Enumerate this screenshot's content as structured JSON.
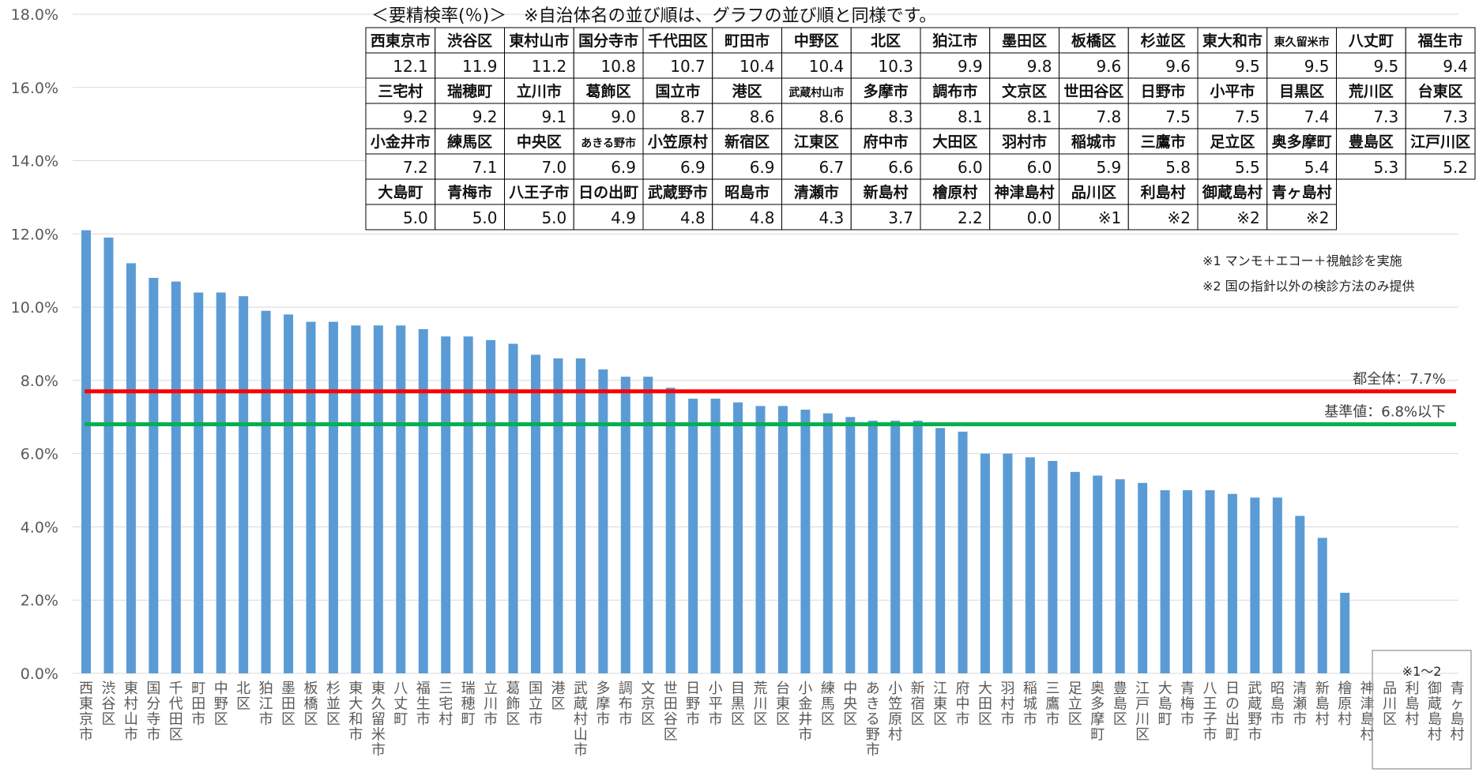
{
  "chart_data": {
    "type": "bar",
    "categories": [
      "西東京市",
      "渋谷区",
      "東村山市",
      "国分寺市",
      "千代田区",
      "町田市",
      "中野区",
      "北区",
      "狛江市",
      "墨田区",
      "板橋区",
      "杉並区",
      "東大和市",
      "東久留米市",
      "八丈町",
      "福生市",
      "三宅村",
      "瑞穂町",
      "立川市",
      "葛飾区",
      "国立市",
      "港区",
      "武蔵村山市",
      "多摩市",
      "調布市",
      "文京区",
      "世田谷区",
      "日野市",
      "小平市",
      "目黒区",
      "荒川区",
      "台東区",
      "小金井市",
      "練馬区",
      "中央区",
      "あきる野市",
      "小笠原村",
      "新宿区",
      "江東区",
      "府中市",
      "大田区",
      "羽村市",
      "稲城市",
      "三鷹市",
      "足立区",
      "奥多摩町",
      "豊島区",
      "江戸川区",
      "大島町",
      "青梅市",
      "八王子市",
      "日の出町",
      "武蔵野市",
      "昭島市",
      "清瀬市",
      "新島村",
      "檜原村",
      "神津島村",
      "品川区",
      "利島村",
      "御蔵島村",
      "青ヶ島村"
    ],
    "values": [
      12.1,
      11.9,
      11.2,
      10.8,
      10.7,
      10.4,
      10.4,
      10.3,
      9.9,
      9.8,
      9.6,
      9.6,
      9.5,
      9.5,
      9.5,
      9.4,
      9.2,
      9.2,
      9.1,
      9.0,
      8.7,
      8.6,
      8.6,
      8.3,
      8.1,
      8.1,
      7.8,
      7.5,
      7.5,
      7.4,
      7.3,
      7.3,
      7.2,
      7.1,
      7.0,
      6.9,
      6.9,
      6.9,
      6.7,
      6.6,
      6.0,
      6.0,
      5.9,
      5.8,
      5.5,
      5.4,
      5.3,
      5.2,
      5.0,
      5.0,
      5.0,
      4.9,
      4.8,
      4.8,
      4.3,
      3.7,
      2.2,
      0.0,
      null,
      null,
      null,
      null
    ],
    "ylim": [
      0,
      18
    ],
    "yticks": [
      "0.0%",
      "2.0%",
      "4.0%",
      "6.0%",
      "8.0%",
      "10.0%",
      "12.0%",
      "14.0%",
      "16.0%",
      "18.0%"
    ],
    "bar_color": "#5B9BD5",
    "reference_lines": [
      {
        "value": 7.7,
        "label": "都全体：7.7%",
        "color": "#FF0000"
      },
      {
        "value": 6.8,
        "label": "基準値：6.8%以下",
        "color": "#00B050"
      }
    ],
    "gridlines": true,
    "excluded_box_label": "※1～2"
  },
  "table": {
    "title": "＜要精検率(％)＞　※自治体名の並び順は、グラフの並び順と同様です。",
    "rows": [
      {
        "names": [
          "西東京市",
          "渋谷区",
          "東村山市",
          "国分寺市",
          "千代田区",
          "町田市",
          "中野区",
          "北区",
          "狛江市",
          "墨田区",
          "板橋区",
          "杉並区",
          "東大和市",
          "東久留米市",
          "八丈町",
          "福生市"
        ],
        "values": [
          "12.1",
          "11.9",
          "11.2",
          "10.8",
          "10.7",
          "10.4",
          "10.4",
          "10.3",
          "9.9",
          "9.8",
          "9.6",
          "9.6",
          "9.5",
          "9.5",
          "9.5",
          "9.4"
        ]
      },
      {
        "names": [
          "三宅村",
          "瑞穂町",
          "立川市",
          "葛飾区",
          "国立市",
          "港区",
          "武蔵村山市",
          "多摩市",
          "調布市",
          "文京区",
          "世田谷区",
          "日野市",
          "小平市",
          "目黒区",
          "荒川区",
          "台東区"
        ],
        "values": [
          "9.2",
          "9.2",
          "9.1",
          "9.0",
          "8.7",
          "8.6",
          "8.6",
          "8.3",
          "8.1",
          "8.1",
          "7.8",
          "7.5",
          "7.5",
          "7.4",
          "7.3",
          "7.3"
        ]
      },
      {
        "names": [
          "小金井市",
          "練馬区",
          "中央区",
          "あきる野市",
          "小笠原村",
          "新宿区",
          "江東区",
          "府中市",
          "大田区",
          "羽村市",
          "稲城市",
          "三鷹市",
          "足立区",
          "奥多摩町",
          "豊島区",
          "江戸川区"
        ],
        "values": [
          "7.2",
          "7.1",
          "7.0",
          "6.9",
          "6.9",
          "6.9",
          "6.7",
          "6.6",
          "6.0",
          "6.0",
          "5.9",
          "5.8",
          "5.5",
          "5.4",
          "5.3",
          "5.2"
        ]
      },
      {
        "names": [
          "大島町",
          "青梅市",
          "八王子市",
          "日の出町",
          "武蔵野市",
          "昭島市",
          "清瀬市",
          "新島村",
          "檜原村",
          "神津島村",
          "品川区",
          "利島村",
          "御蔵島村",
          "青ヶ島村"
        ],
        "values": [
          "5.0",
          "5.0",
          "5.0",
          "4.9",
          "4.8",
          "4.8",
          "4.3",
          "3.7",
          "2.2",
          "0.0",
          "※1",
          "※2",
          "※2",
          "※2"
        ]
      }
    ]
  },
  "notes": [
    "※1 マンモ＋エコー＋視触診を実施",
    "※2 国の指針以外の検診方法のみ提供"
  ]
}
